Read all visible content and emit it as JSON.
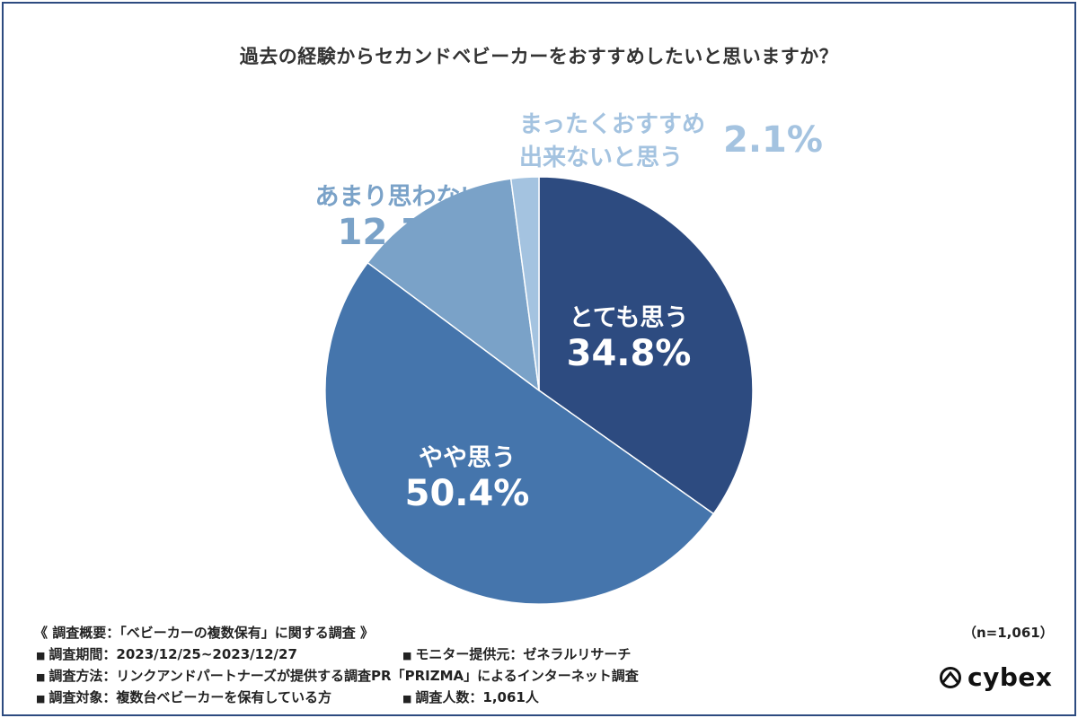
{
  "chart_data": {
    "type": "pie",
    "title": "過去の経験からセカンドベビーカーをおすすめしたいと思いますか？",
    "slices": [
      {
        "label": "とても思う",
        "value": 34.8,
        "value_label": "34.8%",
        "color": "#2d4b80"
      },
      {
        "label": "やや思う",
        "value": 50.4,
        "value_label": "50.4%",
        "color": "#4575ac"
      },
      {
        "label": "あまり思わない",
        "value": 12.7,
        "value_label": "12.7%",
        "color": "#7aa2c8"
      },
      {
        "label_line1": "まったくおすすめ",
        "label_line2": "出来ないと思う",
        "value": 2.1,
        "value_label": "2.1%",
        "color": "#a4c3e0"
      }
    ],
    "start_angle": "12 o'clock",
    "direction": "clockwise"
  },
  "footer": {
    "heading": "《 調査概要：「ベビーカーの複数保有」に関する調査 》",
    "sample_size": "（n=1,061）",
    "bullet": "■",
    "period": "調査期間：2023/12/25~2023/12/27",
    "provider": "モニター提供元：ゼネラルリサーチ",
    "method": "調査方法：リンクアンドパートナーズが提供する調査PR「PRIZMA」によるインターネット調査",
    "target": "調査対象：複数台ベビーカーを保有している方",
    "count": "調査人数：1,061人"
  },
  "logo": {
    "text": "cybex"
  }
}
